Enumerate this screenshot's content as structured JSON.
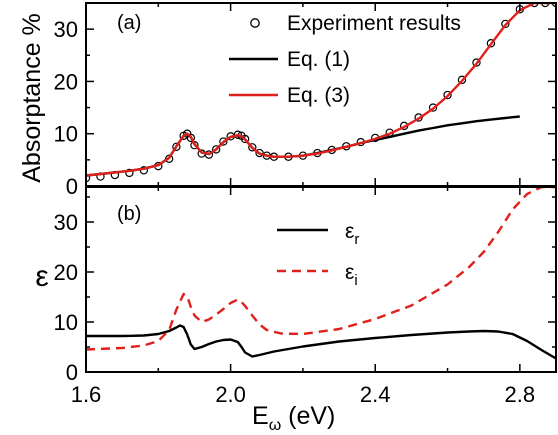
{
  "chart_data": [
    {
      "type": "line",
      "panel_label": "(a)",
      "ylabel": "Absorptance %",
      "xlim": [
        1.6,
        2.9
      ],
      "ylim": [
        0,
        35
      ],
      "x_ticks": [
        1.6,
        2.0,
        2.4,
        2.8
      ],
      "y_ticks": [
        0,
        10,
        20,
        30
      ],
      "legend_position": "top-right",
      "colors": {
        "experiment": "#000000",
        "eq1": "#000000",
        "eq3": "#e0201b"
      },
      "series": [
        {
          "name": "Experiment results",
          "style": "open-circle markers",
          "x": [
            1.6,
            1.64,
            1.68,
            1.72,
            1.76,
            1.8,
            1.83,
            1.85,
            1.87,
            1.88,
            1.89,
            1.9,
            1.92,
            1.94,
            1.96,
            1.98,
            2.0,
            2.02,
            2.03,
            2.04,
            2.06,
            2.08,
            2.1,
            2.12,
            2.16,
            2.2,
            2.24,
            2.28,
            2.32,
            2.36,
            2.4,
            2.44,
            2.48,
            2.52,
            2.56,
            2.6,
            2.64,
            2.68,
            2.72,
            2.76,
            2.8,
            2.84,
            2.87,
            2.9
          ],
          "values": [
            1.5,
            1.8,
            2.1,
            2.5,
            3.0,
            3.8,
            5.2,
            7.5,
            9.6,
            10.0,
            9.2,
            7.8,
            6.2,
            6.0,
            7.0,
            8.5,
            9.5,
            9.8,
            9.6,
            9.0,
            7.4,
            6.3,
            5.8,
            5.6,
            5.6,
            5.8,
            6.3,
            6.9,
            7.6,
            8.4,
            9.2,
            10.2,
            11.5,
            13.1,
            15.0,
            17.4,
            20.3,
            23.6,
            27.3,
            31.0,
            33.8,
            35.0,
            35.0,
            35.0
          ]
        },
        {
          "name": "Eq. (1)",
          "style": "solid",
          "x": [
            1.6,
            1.64,
            1.68,
            1.72,
            1.76,
            1.8,
            1.83,
            1.85,
            1.87,
            1.88,
            1.89,
            1.9,
            1.92,
            1.94,
            1.96,
            1.98,
            2.0,
            2.02,
            2.03,
            2.04,
            2.06,
            2.08,
            2.1,
            2.12,
            2.16,
            2.2,
            2.24,
            2.28,
            2.32,
            2.36,
            2.4,
            2.44,
            2.48,
            2.52,
            2.56,
            2.6,
            2.64,
            2.68,
            2.72,
            2.76,
            2.8
          ],
          "values": [
            2.0,
            2.3,
            2.6,
            2.9,
            3.3,
            4.0,
            5.4,
            7.6,
            9.6,
            10.0,
            9.4,
            8.0,
            6.4,
            6.1,
            7.0,
            8.4,
            9.4,
            9.7,
            9.5,
            8.9,
            7.3,
            6.2,
            5.8,
            5.6,
            5.6,
            5.8,
            6.3,
            6.9,
            7.5,
            8.2,
            8.8,
            9.4,
            10.0,
            10.6,
            11.1,
            11.6,
            12.0,
            12.4,
            12.7,
            13.0,
            13.3
          ]
        },
        {
          "name": "Eq. (3)",
          "style": "solid",
          "x": [
            1.6,
            1.64,
            1.68,
            1.72,
            1.76,
            1.8,
            1.83,
            1.85,
            1.87,
            1.88,
            1.89,
            1.9,
            1.92,
            1.94,
            1.96,
            1.98,
            2.0,
            2.02,
            2.03,
            2.04,
            2.06,
            2.08,
            2.1,
            2.12,
            2.16,
            2.2,
            2.24,
            2.28,
            2.32,
            2.36,
            2.4,
            2.44,
            2.48,
            2.52,
            2.56,
            2.6,
            2.64,
            2.68,
            2.72,
            2.76,
            2.8,
            2.84,
            2.87,
            2.9
          ],
          "values": [
            2.0,
            2.3,
            2.6,
            2.9,
            3.3,
            4.0,
            5.4,
            7.6,
            9.6,
            10.0,
            9.4,
            8.0,
            6.4,
            6.1,
            7.0,
            8.4,
            9.4,
            9.7,
            9.5,
            8.9,
            7.3,
            6.2,
            5.8,
            5.6,
            5.6,
            5.8,
            6.2,
            6.8,
            7.5,
            8.2,
            9.0,
            10.0,
            11.3,
            12.9,
            14.8,
            17.2,
            20.1,
            23.4,
            27.1,
            30.8,
            33.6,
            35.0,
            35.0,
            35.0
          ]
        }
      ]
    },
    {
      "type": "line",
      "panel_label": "(b)",
      "ylabel": "ε",
      "xlabel_main": "E",
      "xlabel_sub": "ω",
      "xlabel_unit": " (eV)",
      "xlim": [
        1.6,
        2.9
      ],
      "ylim": [
        0,
        37
      ],
      "x_ticks": [
        1.6,
        2.0,
        2.4,
        2.8
      ],
      "y_ticks": [
        0,
        10,
        20,
        30
      ],
      "legend_position": "top-right",
      "colors": {
        "eps_r": "#000000",
        "eps_i": "#e0201b"
      },
      "series": [
        {
          "name": "ε",
          "name_sub": "r",
          "style": "solid",
          "x": [
            1.6,
            1.7,
            1.76,
            1.8,
            1.83,
            1.85,
            1.86,
            1.87,
            1.88,
            1.89,
            1.9,
            1.92,
            1.94,
            1.96,
            1.98,
            2.0,
            2.02,
            2.03,
            2.04,
            2.06,
            2.08,
            2.12,
            2.2,
            2.3,
            2.4,
            2.5,
            2.6,
            2.66,
            2.7,
            2.74,
            2.78,
            2.82,
            2.86,
            2.9
          ],
          "values": [
            7.2,
            7.2,
            7.3,
            7.6,
            8.2,
            8.9,
            9.3,
            9.0,
            7.5,
            5.5,
            4.6,
            5.0,
            5.6,
            6.1,
            6.4,
            6.5,
            6.0,
            5.0,
            3.9,
            3.1,
            3.4,
            4.1,
            5.1,
            6.1,
            6.8,
            7.4,
            7.9,
            8.1,
            8.2,
            8.1,
            7.6,
            6.2,
            4.4,
            2.7
          ]
        },
        {
          "name": "ε",
          "name_sub": "i",
          "style": "dashed",
          "x": [
            1.6,
            1.7,
            1.76,
            1.8,
            1.83,
            1.85,
            1.87,
            1.88,
            1.89,
            1.9,
            1.92,
            1.94,
            1.96,
            1.98,
            2.0,
            2.02,
            2.03,
            2.04,
            2.06,
            2.08,
            2.1,
            2.14,
            2.2,
            2.3,
            2.4,
            2.5,
            2.6,
            2.66,
            2.7,
            2.74,
            2.78,
            2.82,
            2.86,
            2.9
          ],
          "values": [
            4.5,
            4.8,
            5.3,
            6.2,
            8.4,
            12.5,
            15.6,
            15.2,
            13.0,
            11.3,
            10.0,
            10.5,
            11.5,
            12.6,
            13.8,
            14.5,
            14.0,
            13.2,
            11.3,
            9.5,
            8.4,
            7.7,
            7.6,
            8.6,
            10.6,
            13.3,
            17.5,
            21.0,
            24.0,
            28.0,
            32.5,
            35.6,
            37.0,
            37.0
          ]
        }
      ]
    }
  ]
}
